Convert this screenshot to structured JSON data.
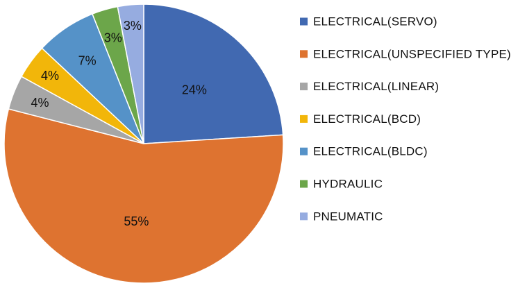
{
  "chart_data": {
    "type": "pie",
    "categories": [
      "ELECTRICAL(SERVO)",
      "ELECTRICAL(UNSPECIFIED TYPE)",
      "ELECTRICAL(LINEAR)",
      "ELECTRICAL(BCD)",
      "ELECTRICAL(BLDC)",
      "HYDRAULIC",
      "PNEUMATIC"
    ],
    "values": [
      24,
      55,
      4,
      4,
      7,
      3,
      3
    ],
    "labels": [
      "24%",
      "55%",
      "4%",
      "4%",
      "7%",
      "3%",
      "3%"
    ],
    "colors": [
      "#4169b1",
      "#de7330",
      "#a6a6a6",
      "#f2b60a",
      "#5592c8",
      "#6ca64a",
      "#96ace0"
    ],
    "start_angle_deg": 0,
    "direction": "clockwise",
    "legend_position": "right"
  }
}
